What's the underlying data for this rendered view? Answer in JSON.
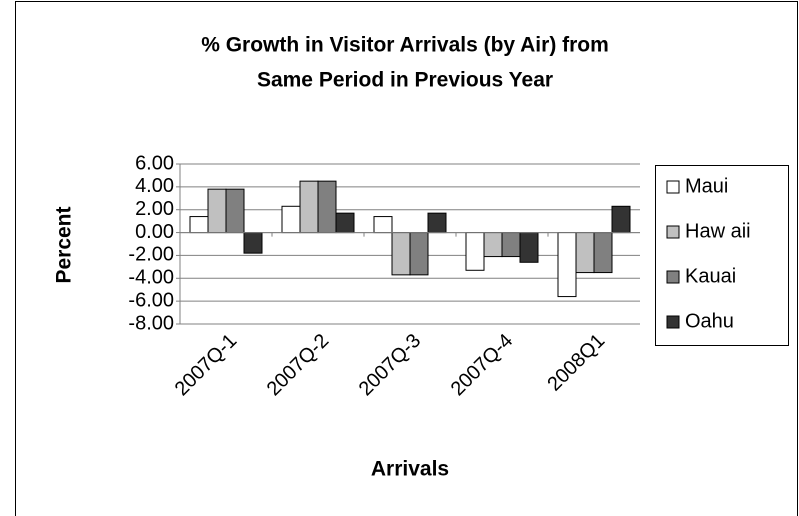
{
  "chart_data": {
    "type": "bar",
    "title": [
      "% Growth in Visitor Arrivals (by Air) from",
      "Same Period in Previous Year"
    ],
    "x_label": "Arrivals",
    "y_label": "Percent",
    "categories": [
      "2007Q-1",
      "2007Q-2",
      "2007Q-3",
      "2007Q-4",
      "2008Q1"
    ],
    "series": [
      {
        "name": "Maui",
        "color": "#ffffff",
        "values": [
          1.4,
          2.3,
          1.4,
          -3.3,
          -5.6
        ]
      },
      {
        "name": "Haw aii",
        "color": "#c0c0c0",
        "values": [
          3.8,
          4.5,
          -3.7,
          -2.1,
          -3.5
        ]
      },
      {
        "name": "Kauai",
        "color": "#808080",
        "values": [
          3.8,
          4.5,
          -3.7,
          -2.1,
          -3.5
        ]
      },
      {
        "name": "Oahu",
        "color": "#333333",
        "values": [
          -1.8,
          1.7,
          1.7,
          -2.6,
          2.3
        ]
      }
    ],
    "ylim": [
      -8,
      6
    ],
    "yticks": [
      {
        "value": -8,
        "label": "-8.00"
      },
      {
        "value": -6,
        "label": "-6.00"
      },
      {
        "value": -4,
        "label": "-4.00"
      },
      {
        "value": -2,
        "label": "-2.00"
      },
      {
        "value": 0,
        "label": "0.00"
      },
      {
        "value": 2,
        "label": "2.00"
      },
      {
        "value": 4,
        "label": "4.00"
      },
      {
        "value": 6,
        "label": "6.00"
      }
    ],
    "grid": true,
    "legend": "right"
  }
}
